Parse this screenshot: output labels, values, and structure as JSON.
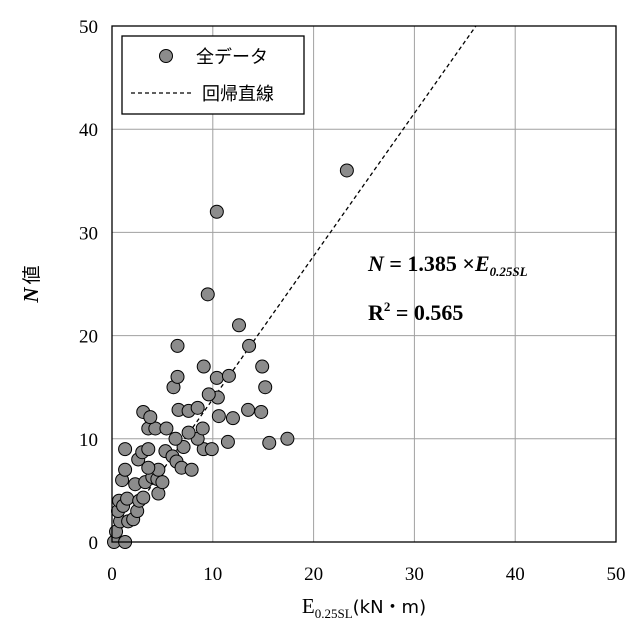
{
  "chart_data": {
    "type": "scatter",
    "xlabel": {
      "main": "E",
      "sub": "0.25SL",
      "unit": "(kN・m)"
    },
    "ylabel": {
      "italic": "N",
      "rest": "値"
    },
    "xlim": [
      0,
      50
    ],
    "ylim": [
      0,
      50
    ],
    "x_ticks": [
      "0",
      "10",
      "20",
      "30",
      "40",
      "50"
    ],
    "y_ticks": [
      "0",
      "10",
      "20",
      "30",
      "40",
      "50"
    ],
    "grid": true,
    "legend": {
      "placement": "top-left",
      "scatter_label": "全データ",
      "line_label": "回帰直線"
    },
    "annotations": {
      "equation": {
        "lhs": "N",
        "eq": " = 1.385 ×",
        "var": "E",
        "sub": "0.25SL"
      },
      "r2": {
        "base": "R",
        "sup": "2",
        "rest": " = 0.565"
      }
    },
    "regression": {
      "slope": 1.385,
      "intercept": 0,
      "r2": 0.565
    },
    "series": [
      {
        "name": "全データ",
        "marker_color": "#8c8c8c",
        "points": [
          [
            0.2,
            0
          ],
          [
            1.3,
            0
          ],
          [
            0.4,
            1
          ],
          [
            0.8,
            2
          ],
          [
            0.6,
            3
          ],
          [
            1.6,
            2
          ],
          [
            2.1,
            2.2
          ],
          [
            0.7,
            4
          ],
          [
            1.1,
            3.5
          ],
          [
            1.5,
            4.2
          ],
          [
            2.5,
            3
          ],
          [
            2.7,
            4
          ],
          [
            3.1,
            4.3
          ],
          [
            4.6,
            4.7
          ],
          [
            1.0,
            6
          ],
          [
            1.3,
            7
          ],
          [
            2.3,
            5.6
          ],
          [
            3.3,
            5.8
          ],
          [
            4.0,
            6.3
          ],
          [
            4.5,
            6.1
          ],
          [
            5.0,
            5.8
          ],
          [
            4.6,
            7
          ],
          [
            3.6,
            7.2
          ],
          [
            1.3,
            9
          ],
          [
            2.6,
            8
          ],
          [
            3.0,
            8.7
          ],
          [
            3.6,
            9
          ],
          [
            5.3,
            8.8
          ],
          [
            6.0,
            8.3
          ],
          [
            6.4,
            7.8
          ],
          [
            6.9,
            7.2
          ],
          [
            7.9,
            7
          ],
          [
            9.1,
            9
          ],
          [
            9.9,
            9
          ],
          [
            7.1,
            9.2
          ],
          [
            6.3,
            10
          ],
          [
            8.5,
            10
          ],
          [
            3.6,
            11
          ],
          [
            4.3,
            11
          ],
          [
            5.4,
            11
          ],
          [
            7.6,
            10.6
          ],
          [
            9.0,
            11
          ],
          [
            3.1,
            12.6
          ],
          [
            6.6,
            12.8
          ],
          [
            7.6,
            12.7
          ],
          [
            10.6,
            12.2
          ],
          [
            3.8,
            12.1
          ],
          [
            8.5,
            13
          ],
          [
            10.5,
            14
          ],
          [
            9.6,
            14.3
          ],
          [
            12.0,
            12
          ],
          [
            14.8,
            12.6
          ],
          [
            13.5,
            12.8
          ],
          [
            6.1,
            15
          ],
          [
            6.5,
            16
          ],
          [
            9.1,
            17
          ],
          [
            10.4,
            15.9
          ],
          [
            11.6,
            16.1
          ],
          [
            15.2,
            15
          ],
          [
            14.9,
            17
          ],
          [
            11.5,
            9.7
          ],
          [
            15.6,
            9.6
          ],
          [
            17.4,
            10
          ],
          [
            6.5,
            19
          ],
          [
            13.6,
            19
          ],
          [
            12.6,
            21
          ],
          [
            9.5,
            24
          ],
          [
            10.4,
            32
          ],
          [
            23.3,
            36
          ]
        ]
      }
    ]
  }
}
